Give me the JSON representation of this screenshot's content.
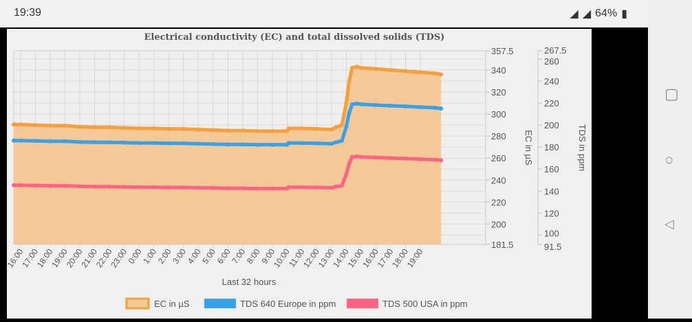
{
  "status": {
    "time": "19:39",
    "battery": "64%"
  },
  "chart_data": {
    "type": "line",
    "title": "Electrical conductivity (EC) and total dissolved solids (TDS)",
    "xlabel": "Last 32 hours",
    "y_left_label": "EC in µS",
    "y_right_label": "TDS in ppm",
    "y_left_range": [
      181.5,
      357.5
    ],
    "y_right_range": [
      91.5,
      267.5
    ],
    "y_left_ticks": [
      "357.5",
      "340",
      "320",
      "300",
      "280",
      "260",
      "240",
      "220",
      "200",
      "181.5"
    ],
    "y_right_ticks": [
      "267.5",
      "260",
      "240",
      "220",
      "200",
      "180",
      "160",
      "140",
      "120",
      "100",
      "91.5"
    ],
    "x_ticks": [
      "16:00",
      "17:00",
      "18:00",
      "19:00",
      "20:00",
      "21:00",
      "22:00",
      "23:00",
      "0:00",
      "1:00",
      "2:00",
      "3:00",
      "4:00",
      "5:00",
      "6:00",
      "7:00",
      "8:00",
      "9:00",
      "10:00",
      "11:00",
      "12:00",
      "13:00",
      "14:00",
      "15:00",
      "16:00",
      "17:00",
      "18:00",
      "19:00"
    ],
    "x_hours": [
      -0.5,
      0,
      1,
      2,
      3,
      4,
      5,
      6,
      7,
      8,
      9,
      10,
      11,
      12,
      13,
      14,
      15,
      16,
      17,
      18,
      18.1,
      19,
      20,
      21,
      21.3,
      21.7,
      22,
      22.2,
      22.4,
      22.7,
      23,
      24,
      25,
      26,
      27,
      28,
      28.4
    ],
    "series": [
      {
        "name": "EC in µS",
        "axis": "left",
        "color": "#f5a03c",
        "fill": "#f5c898",
        "values": [
          290.5,
          290.5,
          290,
          289.5,
          289.5,
          288.5,
          288,
          288,
          287.5,
          287,
          287,
          286.5,
          286.5,
          286,
          285.5,
          285,
          285,
          284.5,
          284.5,
          284.5,
          287,
          287,
          286.5,
          286,
          288,
          290,
          310,
          330,
          342,
          343,
          342,
          341,
          340,
          339,
          338,
          337,
          336
        ]
      },
      {
        "name": "TDS 640 Europe in ppm",
        "axis": "right",
        "color": "#36a2eb",
        "values": [
          185.9,
          185.9,
          185.6,
          185.3,
          185.3,
          184.6,
          184.3,
          184.3,
          184,
          183.7,
          183.7,
          183.4,
          183.4,
          183,
          182.7,
          182.4,
          182.4,
          182.1,
          182.1,
          182.1,
          183.7,
          183.7,
          183.4,
          183,
          184.3,
          185.6,
          198.4,
          211.2,
          218.9,
          219.5,
          218.9,
          218.2,
          217.6,
          217,
          216.3,
          215.7,
          215
        ]
      },
      {
        "name": "TDS 500 USA in ppm",
        "axis": "right",
        "color": "#ff6384",
        "values": [
          145.3,
          145.3,
          145,
          144.8,
          144.8,
          144.3,
          144,
          144,
          143.8,
          143.5,
          143.5,
          143.3,
          143.3,
          143,
          142.8,
          142.5,
          142.5,
          142.3,
          142.3,
          142.3,
          143.5,
          143.5,
          143.3,
          143,
          144,
          145,
          155,
          165,
          171,
          171.5,
          171,
          170.5,
          170,
          169.5,
          169,
          168.5,
          168
        ]
      }
    ]
  }
}
